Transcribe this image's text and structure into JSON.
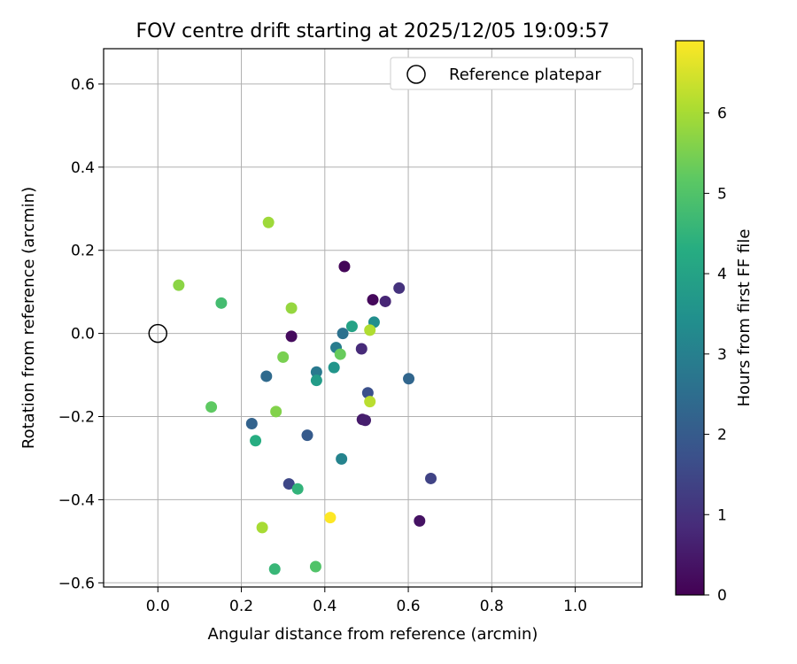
{
  "chart_data": {
    "type": "scatter",
    "title": "FOV centre drift starting at 2025/12/05 19:09:57",
    "xlabel": "Angular distance from reference (arcmin)",
    "ylabel": "Rotation from reference (arcmin)",
    "xlim": [
      -0.13,
      1.16
    ],
    "ylim": [
      -0.61,
      0.685
    ],
    "xticks": [
      0.0,
      0.2,
      0.4,
      0.6,
      0.8,
      1.0
    ],
    "xtick_labels": [
      "0.0",
      "0.2",
      "0.4",
      "0.6",
      "0.8",
      "1.0"
    ],
    "yticks": [
      -0.6,
      -0.4,
      -0.2,
      0.0,
      0.2,
      0.4,
      0.6
    ],
    "ytick_labels": [
      "−0.6",
      "−0.4",
      "−0.2",
      "0.0",
      "0.2",
      "0.4",
      "0.6"
    ],
    "grid": true,
    "legend": {
      "position": "top-right",
      "entries": [
        {
          "label": "Reference platepar",
          "marker": "open-circle"
        }
      ]
    },
    "reference_point": {
      "x": 0.0,
      "y": 0.0
    },
    "colorbar": {
      "label": "Hours from first FF file",
      "colormap": "viridis",
      "range": [
        0,
        6.9
      ],
      "ticks": [
        0,
        1,
        2,
        3,
        4,
        5,
        6
      ],
      "tick_labels": [
        "0",
        "1",
        "2",
        "3",
        "4",
        "5",
        "6"
      ]
    },
    "points": [
      {
        "x": 0.447,
        "y": 0.161,
        "hours": 0.1
      },
      {
        "x": 0.515,
        "y": 0.081,
        "hours": 0.15
      },
      {
        "x": 0.32,
        "y": -0.007,
        "hours": 0.2
      },
      {
        "x": 0.627,
        "y": -0.451,
        "hours": 0.35
      },
      {
        "x": 0.49,
        "y": -0.207,
        "hours": 0.5
      },
      {
        "x": 0.497,
        "y": -0.209,
        "hours": 0.6
      },
      {
        "x": 0.545,
        "y": 0.077,
        "hours": 0.75
      },
      {
        "x": 0.488,
        "y": -0.037,
        "hours": 0.85
      },
      {
        "x": 0.578,
        "y": 0.109,
        "hours": 1.0
      },
      {
        "x": 0.654,
        "y": -0.349,
        "hours": 1.4
      },
      {
        "x": 0.314,
        "y": -0.362,
        "hours": 1.5
      },
      {
        "x": 0.503,
        "y": -0.143,
        "hours": 1.7
      },
      {
        "x": 0.358,
        "y": -0.245,
        "hours": 2.0
      },
      {
        "x": 0.225,
        "y": -0.217,
        "hours": 2.2
      },
      {
        "x": 0.601,
        "y": -0.109,
        "hours": 2.3
      },
      {
        "x": 0.26,
        "y": -0.103,
        "hours": 2.4
      },
      {
        "x": 0.443,
        "y": 0.0,
        "hours": 2.6
      },
      {
        "x": 0.38,
        "y": -0.093,
        "hours": 2.8
      },
      {
        "x": 0.427,
        "y": -0.034,
        "hours": 2.9
      },
      {
        "x": 0.44,
        "y": -0.302,
        "hours": 3.1
      },
      {
        "x": 0.518,
        "y": 0.027,
        "hours": 3.4
      },
      {
        "x": 0.422,
        "y": -0.082,
        "hours": 3.6
      },
      {
        "x": 0.38,
        "y": -0.113,
        "hours": 3.8
      },
      {
        "x": 0.465,
        "y": 0.017,
        "hours": 4.0
      },
      {
        "x": 0.234,
        "y": -0.258,
        "hours": 4.3
      },
      {
        "x": 0.335,
        "y": -0.374,
        "hours": 4.5
      },
      {
        "x": 0.28,
        "y": -0.567,
        "hours": 4.6
      },
      {
        "x": 0.152,
        "y": 0.073,
        "hours": 4.8
      },
      {
        "x": 0.378,
        "y": -0.561,
        "hours": 5.0
      },
      {
        "x": 0.128,
        "y": -0.177,
        "hours": 5.2
      },
      {
        "x": 0.437,
        "y": -0.05,
        "hours": 5.3
      },
      {
        "x": 0.3,
        "y": -0.057,
        "hours": 5.5
      },
      {
        "x": 0.283,
        "y": -0.188,
        "hours": 5.6
      },
      {
        "x": 0.05,
        "y": 0.116,
        "hours": 5.7
      },
      {
        "x": 0.32,
        "y": 0.061,
        "hours": 5.8
      },
      {
        "x": 0.265,
        "y": 0.267,
        "hours": 5.9
      },
      {
        "x": 0.25,
        "y": -0.467,
        "hours": 6.0
      },
      {
        "x": 0.508,
        "y": 0.008,
        "hours": 6.1
      },
      {
        "x": 0.508,
        "y": -0.164,
        "hours": 6.2
      },
      {
        "x": 0.413,
        "y": -0.443,
        "hours": 6.9
      }
    ]
  }
}
